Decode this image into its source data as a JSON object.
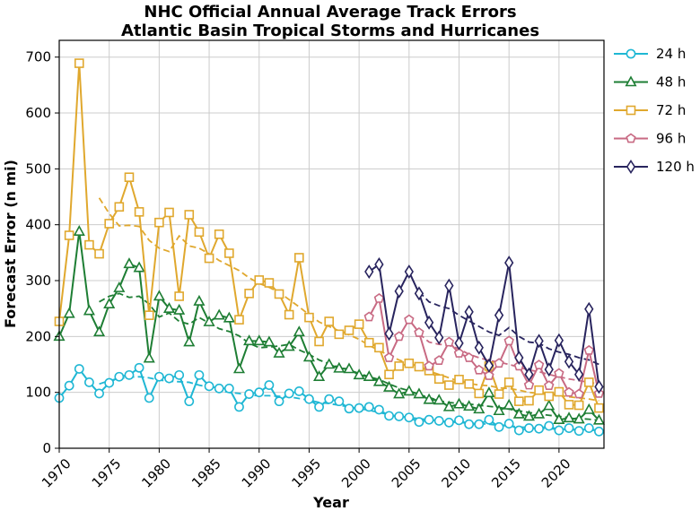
{
  "chart_data": {
    "type": "line",
    "title": "NHC Official Annual Average Track Errors",
    "subtitle": "Atlantic Basin Tropical Storms and Hurricanes",
    "xlabel": "Year",
    "ylabel": "Forecast Error (n mi)",
    "xlim": [
      1970,
      2024.5
    ],
    "ylim": [
      0,
      730
    ],
    "xticks": [
      1970,
      1975,
      1980,
      1985,
      1990,
      1995,
      2000,
      2005,
      2010,
      2015,
      2020
    ],
    "yticks": [
      0,
      100,
      200,
      300,
      400,
      500,
      600,
      700
    ],
    "grid": true,
    "legend_position": "outside-right",
    "series": [
      {
        "name": "24 h",
        "color": "#1fb7d4",
        "marker": "circle",
        "x": [
          1970,
          1971,
          1972,
          1973,
          1974,
          1975,
          1976,
          1977,
          1978,
          1979,
          1980,
          1981,
          1982,
          1983,
          1984,
          1985,
          1986,
          1987,
          1988,
          1989,
          1990,
          1991,
          1992,
          1993,
          1994,
          1995,
          1996,
          1997,
          1998,
          1999,
          2000,
          2001,
          2002,
          2003,
          2004,
          2005,
          2006,
          2007,
          2008,
          2009,
          2010,
          2011,
          2012,
          2013,
          2014,
          2015,
          2016,
          2017,
          2018,
          2019,
          2020,
          2021,
          2022,
          2023,
          2024
        ],
        "values": [
          90,
          112,
          142,
          118,
          98,
          117,
          128,
          131,
          144,
          90,
          128,
          125,
          131,
          84,
          131,
          111,
          107,
          107,
          74,
          97,
          100,
          113,
          84,
          98,
          102,
          88,
          74,
          88,
          84,
          71,
          72,
          74,
          69,
          58,
          57,
          55,
          47,
          51,
          49,
          46,
          50,
          43,
          43,
          51,
          38,
          44,
          32,
          36,
          35,
          40,
          32,
          36,
          31,
          36,
          30
        ],
        "trend": [
          null,
          null,
          null,
          null,
          115,
          121,
          125,
          127,
          128,
          126,
          122,
          120,
          119,
          118,
          113,
          109,
          103,
          100,
          98,
          95,
          94,
          94,
          93,
          92,
          89,
          86,
          82,
          80,
          77,
          74,
          71,
          68,
          64,
          60,
          57,
          55,
          53,
          51,
          49,
          47,
          46,
          45,
          44,
          43,
          41,
          40,
          38,
          37,
          35,
          35,
          34,
          33,
          33,
          32,
          32
        ]
      },
      {
        "name": "48 h",
        "color": "#1e7e34",
        "marker": "triangle",
        "x": [
          1970,
          1971,
          1972,
          1973,
          1974,
          1975,
          1976,
          1977,
          1978,
          1979,
          1980,
          1981,
          1982,
          1983,
          1984,
          1985,
          1986,
          1987,
          1988,
          1989,
          1990,
          1991,
          1992,
          1993,
          1994,
          1995,
          1996,
          1997,
          1998,
          1999,
          2000,
          2001,
          2002,
          2003,
          2004,
          2005,
          2006,
          2007,
          2008,
          2009,
          2010,
          2011,
          2012,
          2013,
          2014,
          2015,
          2016,
          2017,
          2018,
          2019,
          2020,
          2021,
          2022,
          2023,
          2024
        ],
        "values": [
          200,
          241,
          388,
          246,
          208,
          258,
          287,
          330,
          323,
          161,
          272,
          250,
          247,
          190,
          263,
          226,
          238,
          233,
          142,
          192,
          192,
          190,
          170,
          182,
          208,
          163,
          128,
          150,
          143,
          142,
          131,
          128,
          119,
          109,
          97,
          102,
          97,
          87,
          86,
          74,
          79,
          75,
          70,
          99,
          67,
          77,
          61,
          57,
          61,
          76,
          51,
          54,
          52,
          69,
          50
        ],
        "trend": [
          null,
          null,
          null,
          null,
          262,
          272,
          277,
          270,
          272,
          258,
          235,
          242,
          227,
          222,
          234,
          224,
          214,
          209,
          201,
          188,
          180,
          181,
          183,
          186,
          176,
          168,
          158,
          151,
          145,
          140,
          134,
          128,
          123,
          115,
          108,
          103,
          96,
          91,
          85,
          82,
          80,
          79,
          77,
          75,
          73,
          70,
          67,
          64,
          61,
          59,
          57,
          55,
          53,
          52,
          50
        ]
      },
      {
        "name": "72 h",
        "color": "#e0a82e",
        "marker": "square",
        "x": [
          1970,
          1971,
          1972,
          1973,
          1974,
          1975,
          1976,
          1977,
          1978,
          1979,
          1980,
          1981,
          1982,
          1983,
          1984,
          1985,
          1986,
          1987,
          1988,
          1989,
          1990,
          1991,
          1992,
          1993,
          1994,
          1995,
          1996,
          1997,
          1998,
          1999,
          2000,
          2001,
          2002,
          2003,
          2004,
          2005,
          2006,
          2007,
          2008,
          2009,
          2010,
          2011,
          2012,
          2013,
          2014,
          2015,
          2016,
          2017,
          2018,
          2019,
          2020,
          2021,
          2022,
          2023,
          2024
        ],
        "values": [
          227,
          381,
          689,
          364,
          348,
          402,
          432,
          485,
          423,
          238,
          404,
          422,
          272,
          418,
          387,
          340,
          383,
          349,
          230,
          277,
          301,
          296,
          276,
          239,
          341,
          234,
          191,
          227,
          204,
          211,
          222,
          189,
          180,
          132,
          147,
          152,
          146,
          139,
          124,
          113,
          123,
          115,
          98,
          147,
          97,
          118,
          84,
          85,
          104,
          93,
          101,
          78,
          77,
          118,
          72
        ],
        "trend": [
          null,
          null,
          null,
          null,
          448,
          420,
          398,
          399,
          397,
          372,
          358,
          352,
          380,
          362,
          358,
          348,
          336,
          327,
          318,
          305,
          295,
          288,
          279,
          266,
          253,
          239,
          226,
          218,
          210,
          203,
          195,
          184,
          175,
          166,
          158,
          151,
          144,
          138,
          132,
          126,
          120,
          116,
          113,
          112,
          108,
          107,
          104,
          100,
          98,
          96,
          95,
          92,
          90,
          88,
          85
        ]
      },
      {
        "name": "96 h",
        "color": "#c86a83",
        "marker": "pentagon",
        "x": [
          2001,
          2002,
          2003,
          2004,
          2005,
          2006,
          2007,
          2008,
          2009,
          2010,
          2011,
          2012,
          2013,
          2014,
          2015,
          2016,
          2017,
          2018,
          2019,
          2020,
          2021,
          2022,
          2023,
          2024
        ],
        "values": [
          235,
          268,
          162,
          200,
          230,
          207,
          147,
          157,
          190,
          170,
          162,
          140,
          130,
          152,
          192,
          147,
          113,
          149,
          112,
          134,
          100,
          97,
          175,
          98
        ],
        "trend": [
          null,
          null,
          null,
          null,
          null,
          205,
          190,
          186,
          184,
          178,
          168,
          162,
          157,
          154,
          150,
          145,
          140,
          137,
          132,
          128,
          124,
          121,
          118,
          115
        ]
      },
      {
        "name": "120 h",
        "color": "#28245e",
        "marker": "diamond",
        "x": [
          2001,
          2002,
          2003,
          2004,
          2005,
          2006,
          2007,
          2008,
          2009,
          2010,
          2011,
          2012,
          2013,
          2014,
          2015,
          2016,
          2017,
          2018,
          2019,
          2020,
          2021,
          2022,
          2023,
          2024
        ],
        "values": [
          316,
          329,
          205,
          281,
          316,
          277,
          225,
          198,
          291,
          188,
          244,
          180,
          148,
          238,
          332,
          162,
          132,
          192,
          141,
          193,
          155,
          132,
          249,
          110
        ],
        "trend": [
          null,
          null,
          null,
          null,
          null,
          280,
          262,
          255,
          250,
          238,
          228,
          218,
          208,
          202,
          216,
          200,
          190,
          188,
          178,
          172,
          168,
          162,
          158,
          150
        ]
      }
    ]
  }
}
